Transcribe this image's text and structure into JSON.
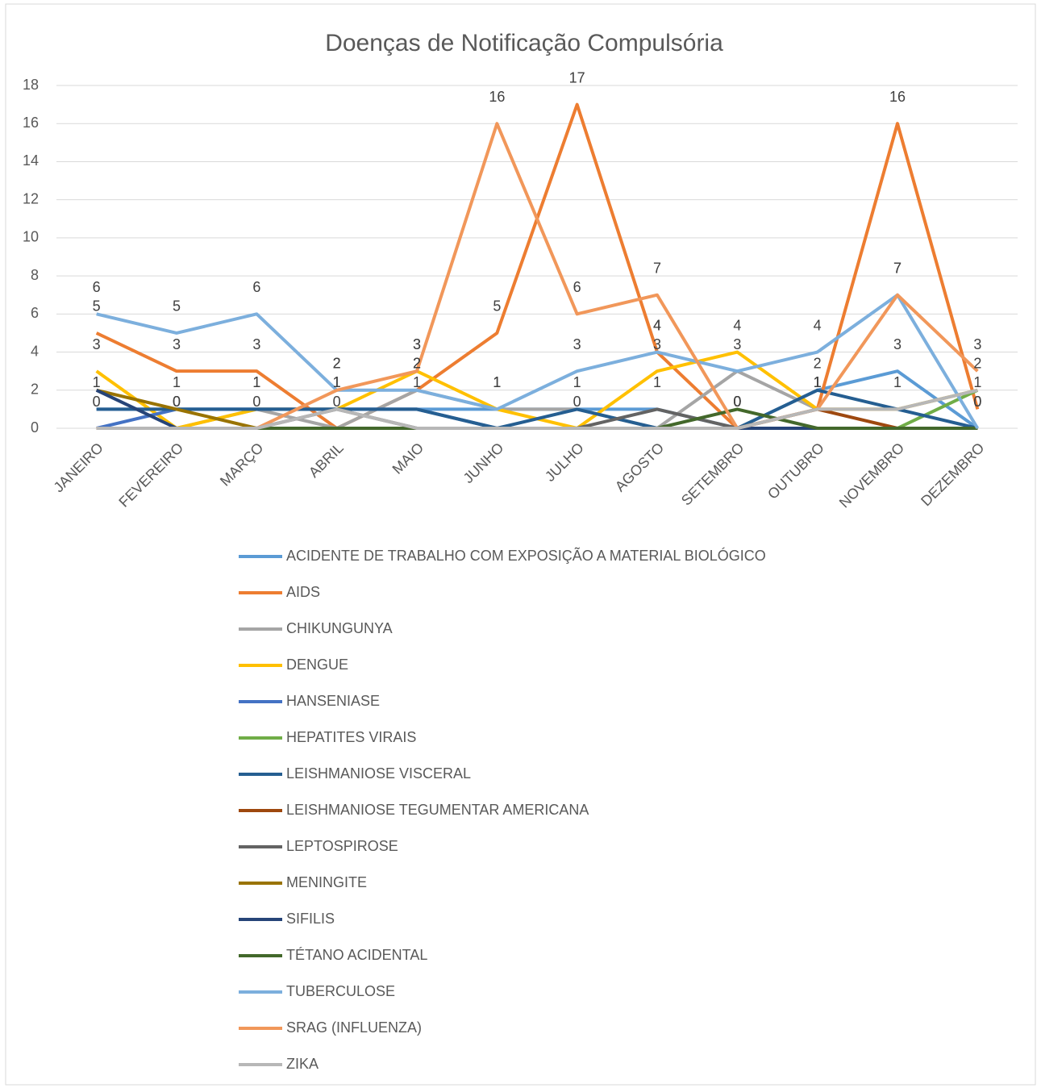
{
  "chart_data": {
    "type": "line",
    "title": "Doenças de Notificação Compulsória",
    "categories": [
      "JANEIRO",
      "FEVEREIRO",
      "MARÇO",
      "ABRIL",
      "MAIO",
      "JUNHO",
      "JULHO",
      "AGOSTO",
      "SETEMBRO",
      "OUTUBRO",
      "NOVEMBRO",
      "DEZEMBRO"
    ],
    "ylim": [
      0,
      18
    ],
    "yticks": [
      0,
      2,
      4,
      6,
      8,
      10,
      12,
      14,
      16,
      18
    ],
    "grid": true,
    "legend": "bottom",
    "series": [
      {
        "name": "ACIDENTE DE TRABALHO COM EXPOSIÇÃO A MATERIAL BIOLÓGICO",
        "color": "#5b9bd5",
        "values": [
          1,
          1,
          1,
          1,
          1,
          1,
          1,
          1,
          0,
          2,
          3,
          0
        ],
        "show_labels": true
      },
      {
        "name": "AIDS",
        "color": "#ed7d31",
        "values": [
          5,
          3,
          3,
          0,
          2,
          5,
          17,
          4,
          0,
          1,
          16,
          1
        ],
        "show_labels": true
      },
      {
        "name": "CHIKUNGUNYA",
        "color": "#a5a5a5",
        "values": [
          0,
          0,
          1,
          0,
          2,
          1,
          1,
          0,
          3,
          1,
          1,
          2
        ],
        "show_labels": false
      },
      {
        "name": "DENGUE",
        "color": "#ffc000",
        "values": [
          3,
          0,
          1,
          1,
          3,
          1,
          0,
          3,
          4,
          1,
          1,
          2
        ],
        "show_labels": true
      },
      {
        "name": "HANSENIASE",
        "color": "#4472c4",
        "values": [
          0,
          1,
          1,
          1,
          1,
          0,
          0,
          0,
          0,
          0,
          0,
          0
        ],
        "show_labels": false
      },
      {
        "name": "HEPATITES VIRAIS",
        "color": "#70ad47",
        "values": [
          0,
          0,
          0,
          0,
          0,
          0,
          0,
          0,
          0,
          0,
          0,
          2
        ],
        "show_labels": false
      },
      {
        "name": "LEISHMANIOSE VISCERAL",
        "color": "#255e91",
        "values": [
          1,
          1,
          1,
          1,
          1,
          0,
          1,
          0,
          0,
          2,
          1,
          0
        ],
        "show_labels": false
      },
      {
        "name": "LEISHMANIOSE TEGUMENTAR AMERICANA",
        "color": "#9e480e",
        "values": [
          0,
          0,
          0,
          0,
          0,
          0,
          0,
          0,
          0,
          1,
          0,
          0
        ],
        "show_labels": false
      },
      {
        "name": "LEPTOSPIROSE",
        "color": "#636363",
        "values": [
          0,
          0,
          0,
          1,
          0,
          0,
          0,
          1,
          0,
          0,
          0,
          0
        ],
        "show_labels": false
      },
      {
        "name": "MENINGITE",
        "color": "#997300",
        "values": [
          2,
          1,
          0,
          0,
          0,
          0,
          0,
          0,
          0,
          0,
          0,
          0
        ],
        "show_labels": false
      },
      {
        "name": "SIFILIS",
        "color": "#264478",
        "values": [
          2,
          0,
          0,
          0,
          0,
          0,
          0,
          0,
          0,
          0,
          0,
          0
        ],
        "show_labels": false
      },
      {
        "name": "TÉTANO ACIDENTAL",
        "color": "#43682b",
        "values": [
          0,
          0,
          0,
          0,
          0,
          0,
          0,
          0,
          1,
          0,
          0,
          0
        ],
        "show_labels": false
      },
      {
        "name": "TUBERCULOSE",
        "color": "#7cafdd",
        "values": [
          6,
          5,
          6,
          2,
          2,
          1,
          3,
          4,
          3,
          4,
          7,
          0
        ],
        "show_labels": true
      },
      {
        "name": "SRAG (INFLUENZA)",
        "color": "#f1975a",
        "values": [
          0,
          0,
          0,
          2,
          3,
          16,
          6,
          7,
          0,
          1,
          7,
          3
        ],
        "show_labels": true
      },
      {
        "name": "ZIKA",
        "color": "#b7b7b7",
        "values": [
          0,
          0,
          0,
          1,
          0,
          0,
          0,
          0,
          0,
          1,
          1,
          2
        ],
        "show_labels": false
      }
    ]
  }
}
